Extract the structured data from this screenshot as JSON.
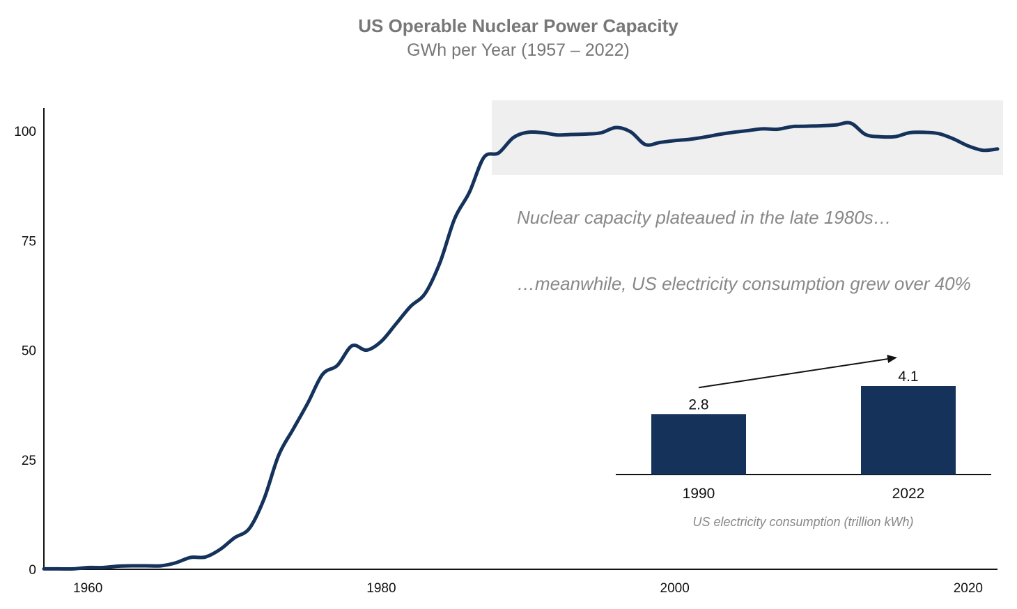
{
  "colors": {
    "line": "#15325b",
    "bar": "#15325b",
    "highlight": "#efefef",
    "axis": "#111111",
    "text_muted": "#888888"
  },
  "chart_data": [
    {
      "type": "line",
      "title": "US Operable Nuclear Power Capacity",
      "subtitle": "GWh per Year (1957 – 2022)",
      "xlim": [
        1957,
        2022
      ],
      "ylim": [
        0,
        105
      ],
      "xticks": [
        1960,
        1980,
        2000,
        2020
      ],
      "yticks": [
        0,
        25,
        50,
        75,
        100
      ],
      "grid": false,
      "series": [
        {
          "x": [
            1957,
            1958,
            1959,
            1960,
            1961,
            1962,
            1963,
            1964,
            1965,
            1966,
            1967,
            1968,
            1969,
            1970,
            1971,
            1972,
            1973,
            1974,
            1975,
            1976,
            1977,
            1978,
            1979,
            1980,
            1981,
            1982,
            1983,
            1984,
            1985,
            1986,
            1987,
            1988,
            1989,
            1990,
            1991,
            1992,
            1993,
            1994,
            1995,
            1996,
            1997,
            1998,
            1999,
            2000,
            2001,
            2002,
            2003,
            2004,
            2005,
            2006,
            2007,
            2008,
            2009,
            2010,
            2011,
            2012,
            2013,
            2014,
            2015,
            2016,
            2017,
            2018,
            2019,
            2020,
            2021,
            2022
          ],
          "y": [
            0.1,
            0.1,
            0.1,
            0.4,
            0.4,
            0.7,
            0.8,
            0.8,
            0.8,
            1.5,
            2.7,
            2.8,
            4.5,
            7.2,
            9.3,
            16.0,
            26.0,
            32.0,
            38.0,
            44.5,
            46.5,
            51.0,
            50.0,
            52.0,
            56.0,
            60.0,
            63.0,
            70.0,
            80.0,
            86.0,
            94.0,
            95.0,
            98.5,
            99.7,
            99.6,
            99.1,
            99.2,
            99.3,
            99.6,
            100.8,
            99.8,
            96.9,
            97.4,
            97.8,
            98.1,
            98.6,
            99.2,
            99.7,
            100.1,
            100.5,
            100.4,
            101.0,
            101.1,
            101.2,
            101.4,
            101.8,
            99.2,
            98.7,
            98.7,
            99.6,
            99.7,
            99.4,
            98.2,
            96.6,
            95.6,
            95.9
          ]
        }
      ],
      "highlight_band": {
        "x": [
          1988,
          2022
        ],
        "y": [
          90,
          107
        ]
      },
      "annotations": [
        "Nuclear capacity plateaued in the late 1980s…",
        "…meanwhile, US electricity consumption grew over 40%"
      ]
    },
    {
      "type": "bar",
      "categories": [
        "1990",
        "2022"
      ],
      "values": [
        2.8,
        4.1
      ],
      "value_labels": [
        "2.8",
        "4.1"
      ],
      "xlabel": "US electricity consumption (trillion kWh)",
      "ylim": [
        0,
        4.1
      ]
    }
  ]
}
